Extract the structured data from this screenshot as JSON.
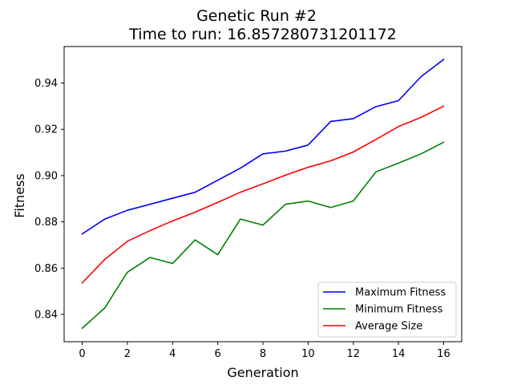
{
  "chart_data": {
    "type": "line",
    "title": "Genetic Run #2",
    "subtitle": "Time to run: 16.857280731201172",
    "xlabel": "Generation",
    "ylabel": "Fitness",
    "xlim": [
      -0.8,
      16.8
    ],
    "ylim": [
      0.8282,
      0.9558
    ],
    "xticks": [
      0,
      2,
      4,
      6,
      8,
      10,
      12,
      14,
      16
    ],
    "xtick_labels": [
      "0",
      "2",
      "4",
      "6",
      "8",
      "10",
      "12",
      "14",
      "16"
    ],
    "yticks": [
      0.84,
      0.86,
      0.88,
      0.9,
      0.92,
      0.94
    ],
    "ytick_labels": [
      "0.84",
      "0.86",
      "0.88",
      "0.90",
      "0.92",
      "0.94"
    ],
    "grid": false,
    "legend_position": "lower-right",
    "x": [
      0,
      1,
      2,
      3,
      4,
      5,
      6,
      7,
      8,
      9,
      10,
      11,
      12,
      13,
      14,
      15,
      16
    ],
    "series": [
      {
        "name": "Maximum Fitness",
        "color": "#0000ff",
        "values": [
          0.8748,
          0.8812,
          0.885,
          0.8876,
          0.8902,
          0.8928,
          0.898,
          0.9032,
          0.9094,
          0.9106,
          0.9132,
          0.9234,
          0.9246,
          0.9298,
          0.9324,
          0.9428,
          0.9502
        ]
      },
      {
        "name": "Minimum Fitness",
        "color": "#008000",
        "values": [
          0.834,
          0.8428,
          0.8582,
          0.8646,
          0.862,
          0.8722,
          0.8658,
          0.8812,
          0.8786,
          0.8876,
          0.889,
          0.8862,
          0.889,
          0.9016,
          0.9054,
          0.9094,
          0.9144
        ]
      },
      {
        "name": "Average Size",
        "color": "#ff0000",
        "values": [
          0.8536,
          0.8638,
          0.8716,
          0.8762,
          0.8804,
          0.8842,
          0.8884,
          0.8928,
          0.8964,
          0.9002,
          0.9036,
          0.9064,
          0.9102,
          0.9156,
          0.9212,
          0.9252,
          0.93
        ]
      }
    ]
  }
}
